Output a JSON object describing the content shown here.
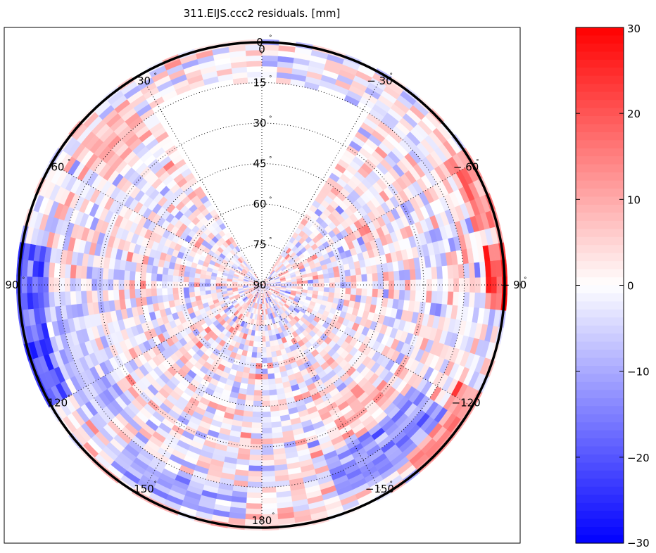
{
  "chart_data": {
    "type": "heatmap",
    "projection": "polar-skyplot",
    "title": "311.EIJS.ccc2 residuals. [mm]",
    "unit": "mm",
    "elevation_rings": [
      0,
      15,
      30,
      45,
      60,
      75,
      90
    ],
    "elevation_labels": [
      "0",
      "15",
      "30",
      "45",
      "60",
      "75",
      "90"
    ],
    "azimuth_spokes": [
      0,
      30,
      60,
      90,
      120,
      150,
      180,
      -150,
      -120,
      -90,
      -60,
      -30
    ],
    "azimuth_labels": [
      {
        "az": 0,
        "text": "0"
      },
      {
        "az": 30,
        "text": "30"
      },
      {
        "az": 60,
        "text": "60"
      },
      {
        "az": 90,
        "text": "90"
      },
      {
        "az": 120,
        "text": "120"
      },
      {
        "az": 150,
        "text": "150"
      },
      {
        "az": 180,
        "text": "180"
      },
      {
        "az": -150,
        "text": "−150"
      },
      {
        "az": -120,
        "text": "−120"
      },
      {
        "az": -90,
        "text": "− 90"
      },
      {
        "az": -60,
        "text": "− 60"
      },
      {
        "az": -30,
        "text": "− 30"
      }
    ],
    "colorbar": {
      "min": -30,
      "max": 30,
      "ticks": [
        30,
        20,
        10,
        0,
        -10,
        -20,
        -30
      ],
      "tick_labels": [
        "30",
        "20",
        "10",
        "0",
        "−10",
        "−20",
        "−30"
      ],
      "low_color": "#0000ff",
      "mid_color": "#ffffff",
      "high_color": "#ff0000"
    },
    "no_data_region": {
      "azimuth_from": -30,
      "azimuth_to": 30,
      "elevation_above": 15
    },
    "residual_features": [
      {
        "az_from": 80,
        "az_to": 118,
        "el_from": 0,
        "el_to": 10,
        "value": -22
      },
      {
        "az_from": 95,
        "az_to": 130,
        "el_from": 10,
        "el_to": 25,
        "value": -8
      },
      {
        "az_from": 35,
        "az_to": 55,
        "el_from": 5,
        "el_to": 20,
        "value": 8
      },
      {
        "az_from": -95,
        "az_to": -80,
        "el_from": 0,
        "el_to": 6,
        "value": 24
      },
      {
        "az_from": -75,
        "az_to": -55,
        "el_from": 0,
        "el_to": 8,
        "value": 15
      },
      {
        "az_from": -140,
        "az_to": -115,
        "el_from": 0,
        "el_to": 8,
        "value": 14
      },
      {
        "az_from": -160,
        "az_to": -125,
        "el_from": 8,
        "el_to": 22,
        "value": -14
      },
      {
        "az_from": 165,
        "az_to": 195,
        "el_from": 0,
        "el_to": 4,
        "value": 6
      },
      {
        "az_from": 140,
        "az_to": 175,
        "el_from": 4,
        "el_to": 15,
        "value": -9
      },
      {
        "az_from": -150,
        "az_to": -130,
        "el_from": 25,
        "el_to": 40,
        "value": 8
      }
    ],
    "legend": "colorbar-right"
  }
}
